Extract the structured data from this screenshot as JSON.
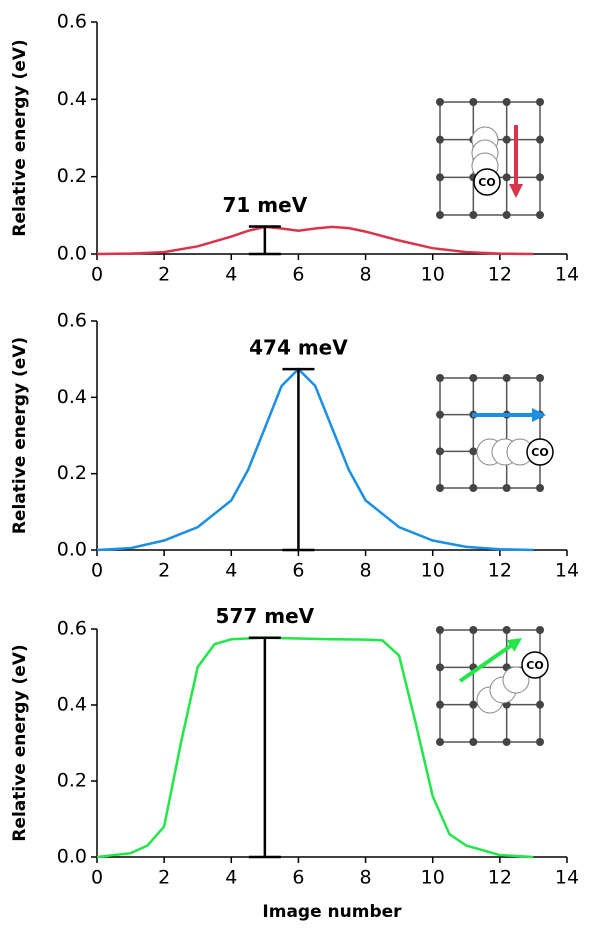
{
  "chart_data": [
    {
      "type": "line",
      "ylabel": "Relative energy (eV)",
      "color": "#d9344c",
      "x": [
        0,
        1,
        2,
        3,
        4,
        4.5,
        5,
        5.5,
        6,
        6.5,
        7,
        7.5,
        8,
        9,
        10,
        11,
        12,
        13
      ],
      "values": [
        0,
        0.001,
        0.005,
        0.02,
        0.045,
        0.06,
        0.07,
        0.066,
        0.06,
        0.066,
        0.07,
        0.067,
        0.058,
        0.035,
        0.015,
        0.005,
        0.001,
        0
      ],
      "xlim": [
        0,
        14
      ],
      "xticks": [
        0,
        2,
        4,
        6,
        8,
        10,
        12,
        14
      ],
      "ylim": [
        0,
        0.6
      ],
      "yticks": [
        {
          "value": 0,
          "label": "0.0"
        },
        0.2,
        0.4,
        0.6
      ],
      "barrier": {
        "x": 5,
        "value": 0.071,
        "label": "71 meV"
      },
      "inset_text": "CO"
    },
    {
      "type": "line",
      "ylabel": "Relative energy (eV)",
      "color": "#1a8fe3",
      "x": [
        0,
        1,
        2,
        3,
        4,
        4.5,
        5,
        5.5,
        6,
        6.5,
        7,
        7.5,
        8,
        9,
        10,
        11,
        12,
        13
      ],
      "values": [
        0,
        0.005,
        0.025,
        0.06,
        0.13,
        0.21,
        0.32,
        0.43,
        0.474,
        0.43,
        0.32,
        0.21,
        0.13,
        0.06,
        0.025,
        0.008,
        0.002,
        0
      ],
      "xlim": [
        0,
        14
      ],
      "xticks": [
        0,
        2,
        4,
        6,
        8,
        10,
        12,
        14
      ],
      "ylim": [
        0,
        0.6
      ],
      "yticks": [
        {
          "value": 0,
          "label": "0.0"
        },
        0.2,
        0.4,
        0.6
      ],
      "barrier": {
        "x": 6,
        "value": 0.474,
        "label": "474 meV"
      },
      "inset_text": "CO"
    },
    {
      "type": "line",
      "ylabel": "Relative energy (eV)",
      "xlabel": "Image number",
      "color": "#22e64a",
      "x": [
        0,
        1,
        1.5,
        2,
        2.5,
        3,
        3.5,
        4,
        5,
        6,
        7,
        8,
        8.5,
        9,
        9.5,
        10,
        10.5,
        11,
        12,
        13
      ],
      "values": [
        0,
        0.01,
        0.03,
        0.08,
        0.3,
        0.5,
        0.56,
        0.573,
        0.577,
        0.575,
        0.573,
        0.572,
        0.57,
        0.53,
        0.35,
        0.16,
        0.06,
        0.03,
        0.005,
        0
      ],
      "xlim": [
        0,
        14
      ],
      "xticks": [
        0,
        2,
        4,
        6,
        8,
        10,
        12,
        14
      ],
      "ylim": [
        0,
        0.6
      ],
      "yticks": [
        {
          "value": 0,
          "label": "0.0"
        },
        0.2,
        0.4,
        0.6
      ],
      "barrier": {
        "x": 5,
        "value": 0.577,
        "label": "577 meV"
      },
      "inset_text": "CO"
    }
  ]
}
